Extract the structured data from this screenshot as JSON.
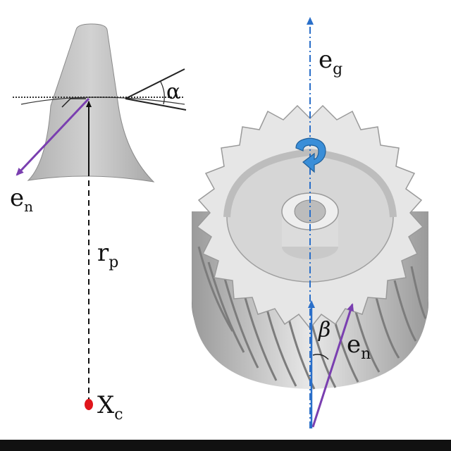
{
  "labels": {
    "alpha": "α",
    "beta": "β",
    "e_g": "e",
    "e_g_sub": "g",
    "e_n_left": "e",
    "e_n_left_sub": "n",
    "e_n_right": "e",
    "e_n_right_sub": "n",
    "r_p": "r",
    "r_p_sub": "p",
    "x_c": "X",
    "x_c_sub": "c"
  },
  "colors": {
    "normal_vector": "#7a3fb0",
    "gear_axis": "#2a6fc9",
    "rotation_arrow": "#3a8ed8",
    "center_point": "#e0151b",
    "gear_body": "#e3e3e3",
    "gear_shadow": "#a8a8a8",
    "tooth_profile": "#c4c4c4"
  }
}
